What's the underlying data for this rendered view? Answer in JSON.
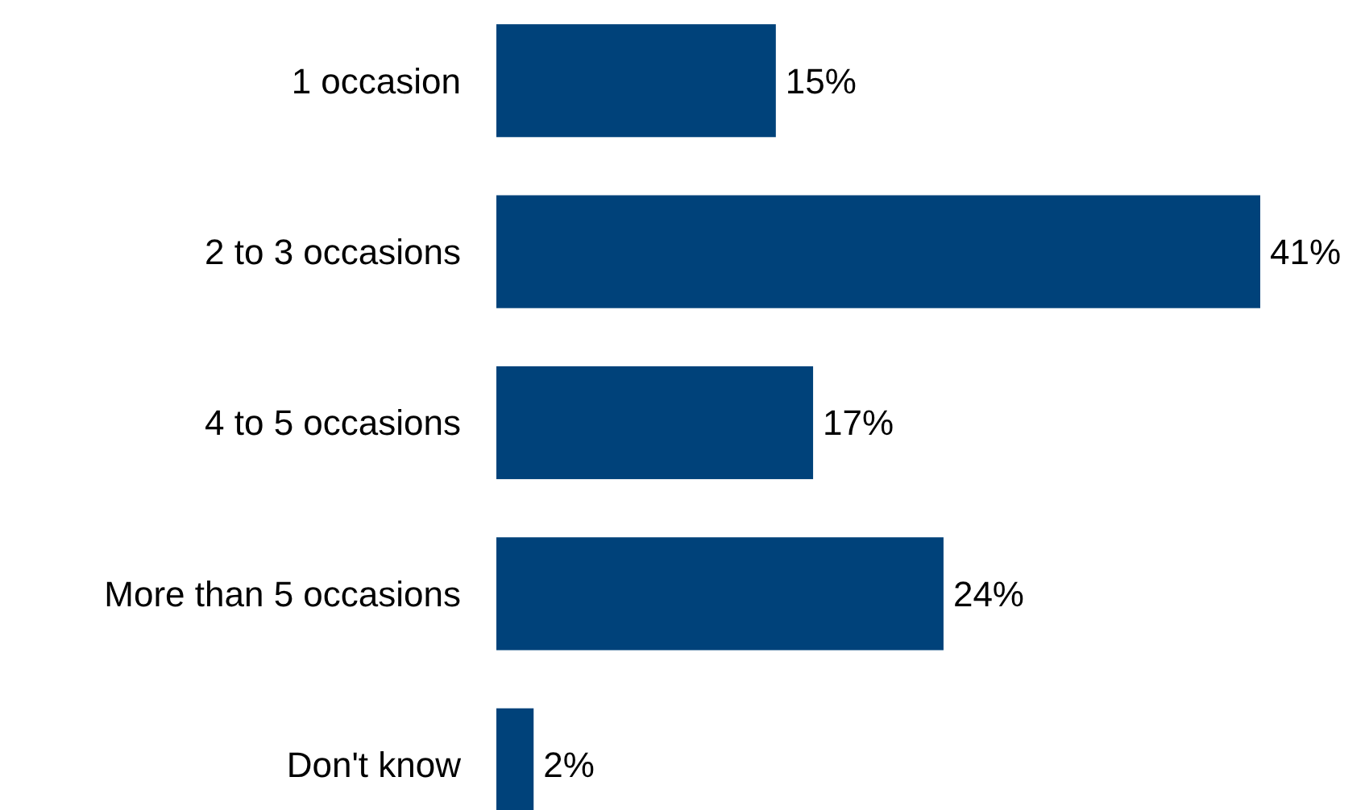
{
  "chart_data": {
    "type": "bar",
    "orientation": "horizontal",
    "categories": [
      "1 occasion",
      "2 to 3 occasions",
      "4 to 5 occasions",
      "More than 5 occasions",
      "Don't know"
    ],
    "values": [
      15,
      41,
      17,
      24,
      2
    ],
    "value_labels": [
      "15%",
      "41%",
      "17%",
      "24%",
      "2%"
    ],
    "color": "#00427a",
    "grid": false
  }
}
